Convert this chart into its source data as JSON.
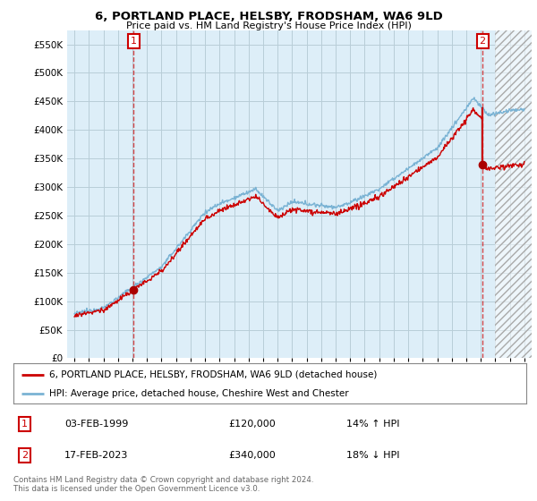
{
  "title": "6, PORTLAND PLACE, HELSBY, FRODSHAM, WA6 9LD",
  "subtitle": "Price paid vs. HM Land Registry's House Price Index (HPI)",
  "legend_line1": "6, PORTLAND PLACE, HELSBY, FRODSHAM, WA6 9LD (detached house)",
  "legend_line2": "HPI: Average price, detached house, Cheshire West and Chester",
  "transaction1_date": "03-FEB-1999",
  "transaction1_price": "£120,000",
  "transaction1_hpi": "14% ↑ HPI",
  "transaction2_date": "17-FEB-2023",
  "transaction2_price": "£340,000",
  "transaction2_hpi": "18% ↓ HPI",
  "footnote": "Contains HM Land Registry data © Crown copyright and database right 2024.\nThis data is licensed under the Open Government Licence v3.0.",
  "hpi_color": "#7ab3d4",
  "price_color": "#cc0000",
  "marker_color": "#aa0000",
  "background_color": "#ffffff",
  "chart_bg_color": "#ddeef8",
  "grid_color": "#b8cdd8",
  "ylim": [
    0,
    575000
  ],
  "yticks": [
    0,
    50000,
    100000,
    150000,
    200000,
    250000,
    300000,
    350000,
    400000,
    450000,
    500000,
    550000
  ],
  "xlim_start": 1994.5,
  "xlim_end": 2026.5,
  "sale1_x": 1999.09,
  "sale1_y": 120000,
  "sale2_x": 2023.12,
  "sale2_y": 340000,
  "hatch_start": 2024.0
}
